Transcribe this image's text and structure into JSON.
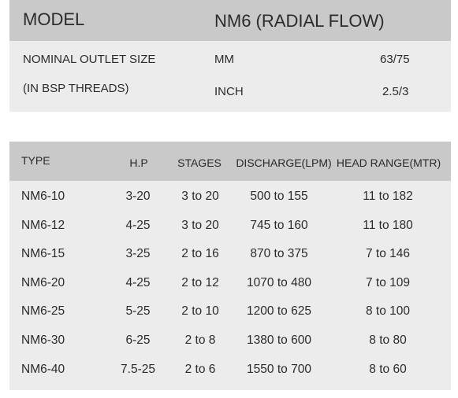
{
  "spec": {
    "model_label": "MODEL",
    "model_value": "NM6 (RADIAL FLOW)",
    "rows": [
      {
        "label": "NOMINAL OUTLET SIZE",
        "unit": "MM",
        "value": "63/75"
      },
      {
        "label": "(IN BSP THREADS)",
        "unit": "INCH",
        "value": "2.5/3"
      }
    ]
  },
  "table": {
    "headers": [
      "TYPE",
      "H.P",
      "STAGES",
      "DISCHARGE(LPM)",
      "HEAD RANGE(MTR)"
    ],
    "rows": [
      [
        "NM6-10",
        "3-20",
        "3 to 20",
        "500 to 155",
        "11 to 182"
      ],
      [
        "NM6-12",
        "4-25",
        "3 to 20",
        "745 to 160",
        "11 to 180"
      ],
      [
        "NM6-15",
        "3-25",
        "2 to 16",
        "870 to 375",
        "7 to 146"
      ],
      [
        "NM6-20",
        "4-25",
        "2 to 12",
        "1070 to 480",
        "7 to 109"
      ],
      [
        "NM6-25",
        "5-25",
        "2 to 10",
        "1200 to 625",
        "8 to 100"
      ],
      [
        "NM6-30",
        "6-25",
        "2 to 8",
        "1380 to 600",
        "8 to 80"
      ],
      [
        "NM6-40",
        "7.5-25",
        "2 to 6",
        "1550 to 700",
        "8 to 60"
      ]
    ]
  }
}
